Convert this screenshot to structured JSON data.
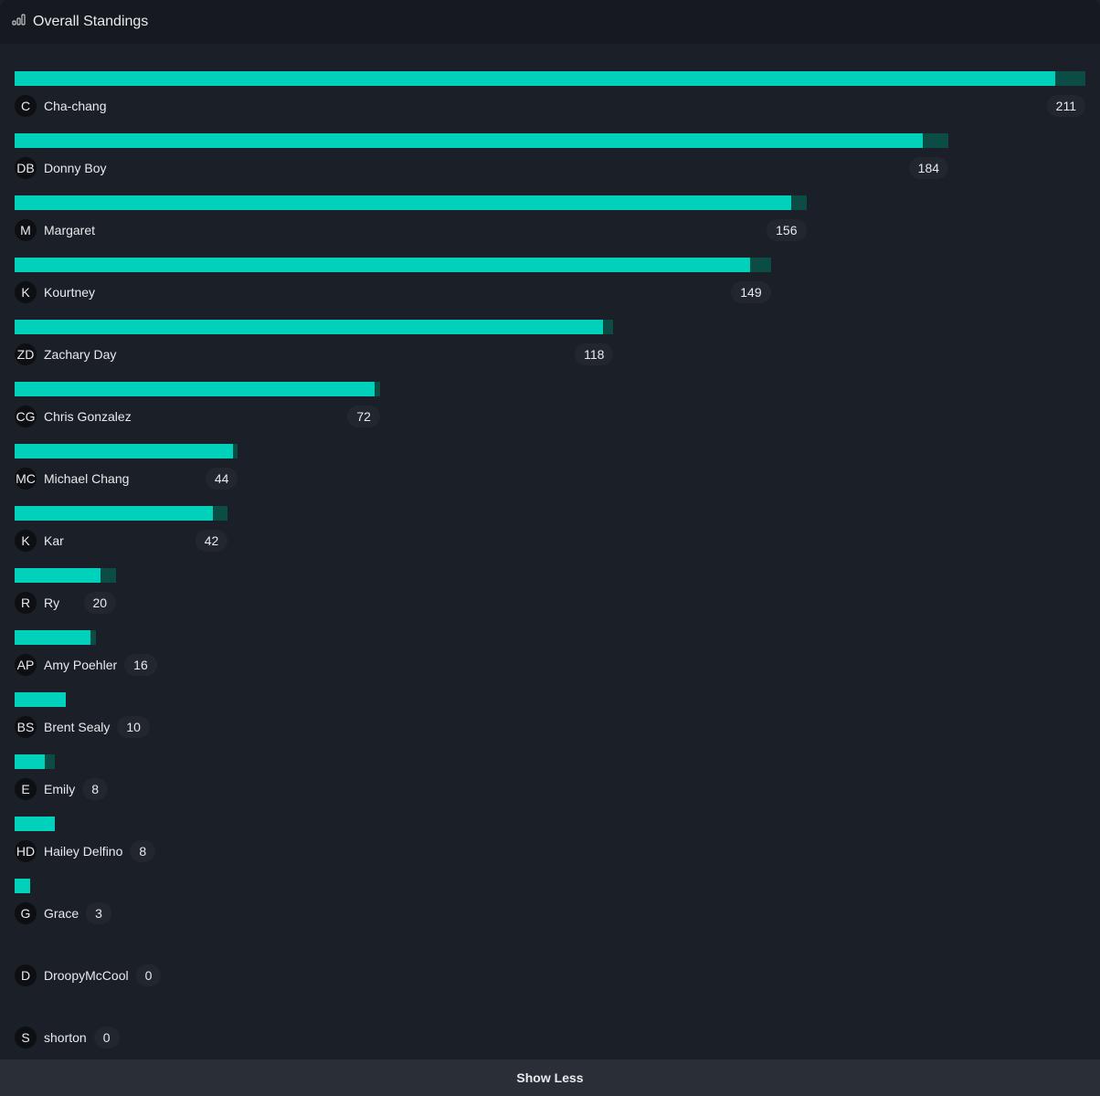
{
  "header": {
    "title": "Overall Standings",
    "icon": "bar-chart-icon"
  },
  "footer": {
    "label": "Show Less"
  },
  "colors": {
    "primary": "#00d1bb",
    "secondary": "#0b4d45"
  },
  "chart_data": {
    "type": "bar",
    "title": "Overall Standings",
    "xlim": [
      0,
      211
    ],
    "categories": [
      "Cha-chang",
      "Donny Boy",
      "Margaret",
      "Kourtney",
      "Zachary Day",
      "Chris Gonzalez",
      "Michael Chang",
      "Kar",
      "Ry",
      "Amy Poehler",
      "Brent Sealy",
      "Emily",
      "Hailey Delfino",
      "Grace",
      "DroopyMcCool",
      "shorton"
    ],
    "initials": [
      "C",
      "DB",
      "M",
      "K",
      "ZD",
      "CG",
      "MC",
      "K",
      "R",
      "AP",
      "BS",
      "E",
      "HD",
      "G",
      "D",
      "S"
    ],
    "values": [
      211,
      184,
      156,
      149,
      118,
      72,
      44,
      42,
      20,
      16,
      10,
      8,
      8,
      3,
      0,
      0
    ],
    "series": [
      {
        "name": "primary",
        "values": [
          205,
          179,
          153,
          145,
          116,
          71,
          43,
          39,
          17,
          15,
          10,
          6,
          8,
          3,
          0,
          0
        ]
      },
      {
        "name": "secondary",
        "values": [
          6,
          5,
          3,
          4,
          2,
          1,
          1,
          3,
          3,
          1,
          0,
          2,
          0,
          0,
          0,
          0
        ]
      }
    ]
  }
}
